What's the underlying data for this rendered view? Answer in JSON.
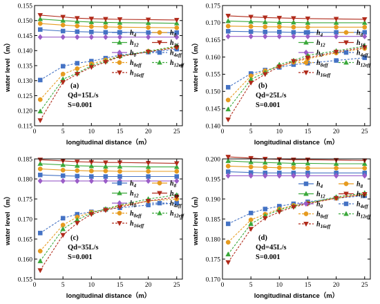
{
  "styles": {
    "h4": {
      "color": "#4472c4",
      "marker": "square"
    },
    "h8": {
      "color": "#e69b1f",
      "marker": "circle"
    },
    "h12": {
      "color": "#3aa83a",
      "marker": "triangle"
    },
    "h16": {
      "color": "#b02a1a",
      "marker": "triangle-down"
    },
    "h0": {
      "color": "#9a5cc8",
      "marker": "diamond"
    }
  },
  "legend_entries": [
    {
      "key": "h4",
      "base": "h",
      "sub": "4",
      "dashed": false
    },
    {
      "key": "h8",
      "base": "h",
      "sub": "8",
      "dashed": false
    },
    {
      "key": "h12",
      "base": "h",
      "sub": "12",
      "dashed": false
    },
    {
      "key": "h16",
      "base": "h",
      "sub": "16",
      "dashed": false
    },
    {
      "key": "h0",
      "base": "h",
      "sub": "0",
      "dashed": false
    },
    {
      "key": "h4",
      "base": "h",
      "sub": "4eff",
      "dashed": true
    },
    {
      "key": "h8",
      "base": "h",
      "sub": "8eff",
      "dashed": true
    },
    {
      "key": "h12",
      "base": "h",
      "sub": "12eff",
      "dashed": true
    },
    {
      "key": "h16",
      "base": "h",
      "sub": "16eff",
      "dashed": true
    }
  ],
  "chart_data": [
    {
      "type": "line",
      "panel": "(a)",
      "annotation": [
        "Qd=15L/s",
        "S=0.001"
      ],
      "xlabel": "longitudinal distance（m）",
      "ylabel": "water level（m）",
      "xlim": [
        0,
        26
      ],
      "ylim": [
        0.115,
        0.155
      ],
      "xticks": [
        0,
        5,
        10,
        15,
        20,
        25
      ],
      "yticks": [
        0.115,
        0.12,
        0.125,
        0.13,
        0.135,
        0.14,
        0.145,
        0.15,
        0.155
      ],
      "ytick_labels": [
        "0.115",
        "0.120",
        "0.125",
        "0.130",
        "0.135",
        "0.140",
        "0.145",
        "0.150",
        "0.155"
      ],
      "x": [
        1,
        5,
        7.5,
        10,
        12.5,
        15,
        20,
        25
      ],
      "series": [
        {
          "key": "h4",
          "dashed": false,
          "values": [
            0.147,
            0.1465,
            0.1463,
            0.1462,
            0.1461,
            0.1461,
            0.146,
            0.146
          ]
        },
        {
          "key": "h8",
          "dashed": false,
          "values": [
            0.149,
            0.1485,
            0.1482,
            0.148,
            0.1479,
            0.1478,
            0.1477,
            0.1476
          ]
        },
        {
          "key": "h12",
          "dashed": false,
          "values": [
            0.1505,
            0.15,
            0.1497,
            0.1495,
            0.1494,
            0.1493,
            0.1492,
            0.1491
          ]
        },
        {
          "key": "h16",
          "dashed": false,
          "values": [
            0.1518,
            0.1512,
            0.1508,
            0.1506,
            0.1505,
            0.1504,
            0.1503,
            0.1502
          ]
        },
        {
          "key": "h0",
          "dashed": false,
          "values": [
            0.1445,
            0.1445,
            0.1445,
            0.1445,
            0.1445,
            0.1445,
            0.1445,
            0.1445
          ]
        },
        {
          "key": "h4",
          "dashed": true,
          "values": [
            0.1302,
            0.1348,
            0.1358,
            0.1365,
            0.1375,
            0.1385,
            0.1395,
            0.1405
          ]
        },
        {
          "key": "h8",
          "dashed": true,
          "values": [
            0.1237,
            0.1322,
            0.134,
            0.1356,
            0.1369,
            0.1381,
            0.1398,
            0.1412
          ]
        },
        {
          "key": "h12",
          "dashed": true,
          "values": [
            0.1198,
            0.1305,
            0.1325,
            0.135,
            0.1365,
            0.1382,
            0.1398,
            0.1415
          ]
        },
        {
          "key": "h16",
          "dashed": true,
          "values": [
            0.1168,
            0.1295,
            0.1322,
            0.1345,
            0.1362,
            0.138,
            0.1396,
            0.141
          ]
        }
      ]
    },
    {
      "type": "line",
      "panel": "(b)",
      "annotation": [
        "Qd=25L/s",
        "S=0.001"
      ],
      "xlabel": "longitudinal distance（m）",
      "ylabel": "water level（m）",
      "xlim": [
        0,
        26
      ],
      "ylim": [
        0.14,
        0.175
      ],
      "xticks": [
        0,
        5,
        10,
        15,
        20,
        25
      ],
      "yticks": [
        0.14,
        0.145,
        0.15,
        0.155,
        0.16,
        0.165,
        0.17,
        0.175
      ],
      "ytick_labels": [
        "0.140",
        "0.145",
        "0.150",
        "0.155",
        "0.160",
        "0.165",
        "0.170",
        "0.175"
      ],
      "x": [
        1,
        5,
        7.5,
        10,
        12.5,
        15,
        20,
        25
      ],
      "series": [
        {
          "key": "h4",
          "dashed": false,
          "values": [
            0.1675,
            0.1674,
            0.1673,
            0.1673,
            0.1672,
            0.1672,
            0.1672,
            0.1672
          ]
        },
        {
          "key": "h8",
          "dashed": false,
          "values": [
            0.169,
            0.1689,
            0.1688,
            0.1688,
            0.1687,
            0.1687,
            0.1687,
            0.1687
          ]
        },
        {
          "key": "h12",
          "dashed": false,
          "values": [
            0.1705,
            0.1703,
            0.1702,
            0.1701,
            0.1701,
            0.17,
            0.17,
            0.17
          ]
        },
        {
          "key": "h16",
          "dashed": false,
          "values": [
            0.172,
            0.1717,
            0.1715,
            0.1714,
            0.1713,
            0.1712,
            0.1711,
            0.171
          ]
        },
        {
          "key": "h0",
          "dashed": false,
          "values": [
            0.166,
            0.166,
            0.166,
            0.166,
            0.166,
            0.166,
            0.166,
            0.166
          ]
        },
        {
          "key": "h4",
          "dashed": true,
          "values": [
            0.1512,
            0.1552,
            0.1562,
            0.157,
            0.1578,
            0.1582,
            0.159,
            0.1598
          ]
        },
        {
          "key": "h8",
          "dashed": true,
          "values": [
            0.1475,
            0.1545,
            0.156,
            0.1573,
            0.1585,
            0.1595,
            0.1612,
            0.1625
          ]
        },
        {
          "key": "h12",
          "dashed": true,
          "values": [
            0.1448,
            0.1535,
            0.1555,
            0.1578,
            0.159,
            0.1605,
            0.1618,
            0.1632
          ]
        },
        {
          "key": "h16",
          "dashed": true,
          "values": [
            0.1418,
            0.1525,
            0.155,
            0.1572,
            0.1588,
            0.1598,
            0.1615,
            0.1628
          ]
        }
      ]
    },
    {
      "type": "line",
      "panel": "(c)",
      "annotation": [
        "Qd=35L/s",
        "S=0.001"
      ],
      "xlabel": "longitudinal distance（m）",
      "ylabel": "water level（m）",
      "xlim": [
        0,
        26
      ],
      "ylim": [
        0.155,
        0.185
      ],
      "xticks": [
        0,
        5,
        10,
        15,
        20,
        25
      ],
      "yticks": [
        0.155,
        0.16,
        0.165,
        0.17,
        0.175,
        0.18,
        0.185
      ],
      "ytick_labels": [
        "0.155",
        "0.160",
        "0.165",
        "0.170",
        "0.175",
        "0.180",
        "0.185"
      ],
      "x": [
        1,
        5,
        7.5,
        10,
        12.5,
        15,
        20,
        25
      ],
      "series": [
        {
          "key": "h4",
          "dashed": false,
          "values": [
            0.181,
            0.1808,
            0.1807,
            0.1806,
            0.1806,
            0.1806,
            0.1806,
            0.1806
          ]
        },
        {
          "key": "h8",
          "dashed": false,
          "values": [
            0.1825,
            0.1822,
            0.1821,
            0.182,
            0.182,
            0.1819,
            0.1819,
            0.1819
          ]
        },
        {
          "key": "h12",
          "dashed": false,
          "values": [
            0.1838,
            0.1835,
            0.1833,
            0.1832,
            0.1831,
            0.1831,
            0.183,
            0.183
          ]
        },
        {
          "key": "h16",
          "dashed": false,
          "values": [
            0.1848,
            0.1845,
            0.1843,
            0.1842,
            0.1841,
            0.1841,
            0.184,
            0.1839
          ]
        },
        {
          "key": "h0",
          "dashed": false,
          "values": [
            0.1795,
            0.1795,
            0.1795,
            0.1795,
            0.1795,
            0.1795,
            0.1795,
            0.1795
          ]
        },
        {
          "key": "h4",
          "dashed": true,
          "values": [
            0.1665,
            0.1702,
            0.1712,
            0.1718,
            0.1724,
            0.1728,
            0.1735,
            0.174
          ]
        },
        {
          "key": "h8",
          "dashed": true,
          "values": [
            0.162,
            0.1685,
            0.1705,
            0.1717,
            0.1724,
            0.1733,
            0.1745,
            0.175
          ]
        },
        {
          "key": "h12",
          "dashed": true,
          "values": [
            0.1595,
            0.1675,
            0.1698,
            0.1715,
            0.1725,
            0.1735,
            0.175,
            0.176
          ]
        },
        {
          "key": "h16",
          "dashed": true,
          "values": [
            0.1572,
            0.166,
            0.169,
            0.1712,
            0.1722,
            0.173,
            0.1745,
            0.1755
          ]
        }
      ]
    },
    {
      "type": "line",
      "panel": "(d)",
      "annotation": [
        "Qd=45L/s",
        "S=0.001"
      ],
      "xlabel": "longitudinal distance（m）",
      "ylabel": "water level（m）",
      "xlim": [
        0,
        26
      ],
      "ylim": [
        0.17,
        0.2
      ],
      "xticks": [
        0,
        5,
        10,
        15,
        20,
        25
      ],
      "yticks": [
        0.17,
        0.175,
        0.18,
        0.185,
        0.19,
        0.195,
        0.2
      ],
      "ytick_labels": [
        "0.170",
        "0.175",
        "0.180",
        "0.185",
        "0.190",
        "0.195",
        "0.200"
      ],
      "x": [
        1,
        5,
        7.5,
        10,
        12.5,
        15,
        20,
        25
      ],
      "series": [
        {
          "key": "h4",
          "dashed": false,
          "values": [
            0.1968,
            0.1966,
            0.1965,
            0.1965,
            0.1965,
            0.1965,
            0.1965,
            0.1965
          ]
        },
        {
          "key": "h8",
          "dashed": false,
          "values": [
            0.1982,
            0.198,
            0.1979,
            0.1978,
            0.1978,
            0.1977,
            0.1977,
            0.1977
          ]
        },
        {
          "key": "h12",
          "dashed": false,
          "values": [
            0.1995,
            0.1992,
            0.1991,
            0.199,
            0.1989,
            0.1989,
            0.1988,
            0.1988
          ]
        },
        {
          "key": "h16",
          "dashed": false,
          "values": [
            0.2005,
            0.2002,
            0.2,
            0.1999,
            0.1998,
            0.1998,
            0.1997,
            0.1996
          ]
        },
        {
          "key": "h0",
          "dashed": false,
          "values": [
            0.1958,
            0.1958,
            0.1958,
            0.1958,
            0.1958,
            0.1958,
            0.1958,
            0.1958
          ]
        },
        {
          "key": "h4",
          "dashed": true,
          "values": [
            0.1838,
            0.1865,
            0.1875,
            0.1882,
            0.1888,
            0.1893,
            0.1902,
            0.1908
          ]
        },
        {
          "key": "h8",
          "dashed": true,
          "values": [
            0.1792,
            0.1848,
            0.1862,
            0.1875,
            0.1884,
            0.189,
            0.1902,
            0.1912
          ]
        },
        {
          "key": "h12",
          "dashed": true,
          "values": [
            0.1762,
            0.1838,
            0.1858,
            0.1873,
            0.1882,
            0.189,
            0.1905,
            0.1915
          ]
        },
        {
          "key": "h16",
          "dashed": true,
          "values": [
            0.1742,
            0.1825,
            0.1852,
            0.1868,
            0.188,
            0.1888,
            0.1902,
            0.1912
          ]
        }
      ]
    }
  ]
}
